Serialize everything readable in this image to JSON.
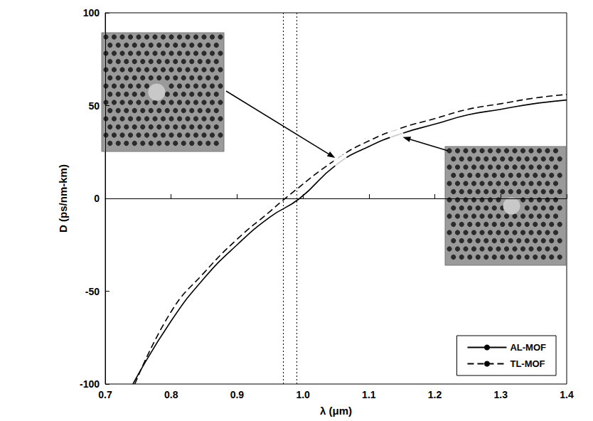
{
  "chart_data": {
    "type": "line",
    "x_label": "λ (μm)",
    "y_label": "D (ps/nm-km)",
    "xlim": [
      0.7,
      1.4
    ],
    "xticks": [
      0.7,
      0.8,
      0.9,
      {
        "value": 1,
        "label": "1.0"
      },
      1.1,
      1.2,
      1.3,
      1.4
    ],
    "ylim": [
      -100,
      100
    ],
    "yticks": [
      -100,
      -50,
      0,
      50,
      100
    ],
    "grid": false,
    "legend": "lower right",
    "series": [
      {
        "name": "AL-MOF",
        "color": "#000000",
        "line_style": "solid",
        "x": [
          0.742,
          0.8,
          0.85,
          0.9,
          0.95,
          0.995,
          1.05,
          1.1,
          1.15,
          1.2,
          1.25,
          1.3,
          1.35,
          1.4
        ],
        "values": [
          -100,
          -66,
          -43,
          -25,
          -10,
          0,
          18,
          28,
          35,
          40,
          45,
          48,
          51,
          53
        ]
      },
      {
        "name": "TL-MOF",
        "color": "#000000",
        "line_style": "dashed",
        "x": [
          0.745,
          0.8,
          0.85,
          0.9,
          0.95,
          0.973,
          1.05,
          1.1,
          1.15,
          1.2,
          1.25,
          1.3,
          1.35,
          1.4
        ],
        "values": [
          -100,
          -61,
          -40,
          -22,
          -7,
          0,
          21,
          31,
          38,
          43,
          48,
          51,
          54,
          56
        ]
      }
    ],
    "reference_lines": {
      "x": [
        0.973,
        0.995
      ],
      "y": [
        0
      ]
    },
    "highlighted_points": [
      {
        "x": 1.057,
        "y": 20
      },
      {
        "x": 1.142,
        "y": 34
      }
    ],
    "marker": "circle"
  }
}
